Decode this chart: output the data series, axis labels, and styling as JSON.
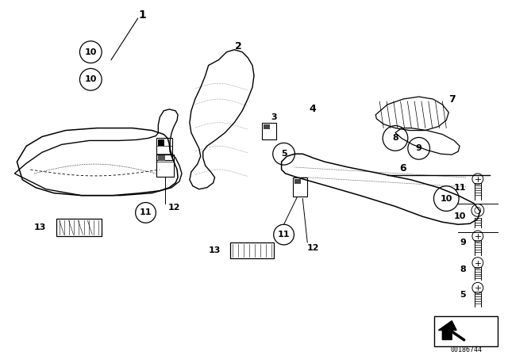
{
  "bg_color": "#ffffff",
  "line_color": "#000000",
  "part_number_label": "00186744",
  "fig_width": 6.4,
  "fig_height": 4.48,
  "dpi": 100
}
